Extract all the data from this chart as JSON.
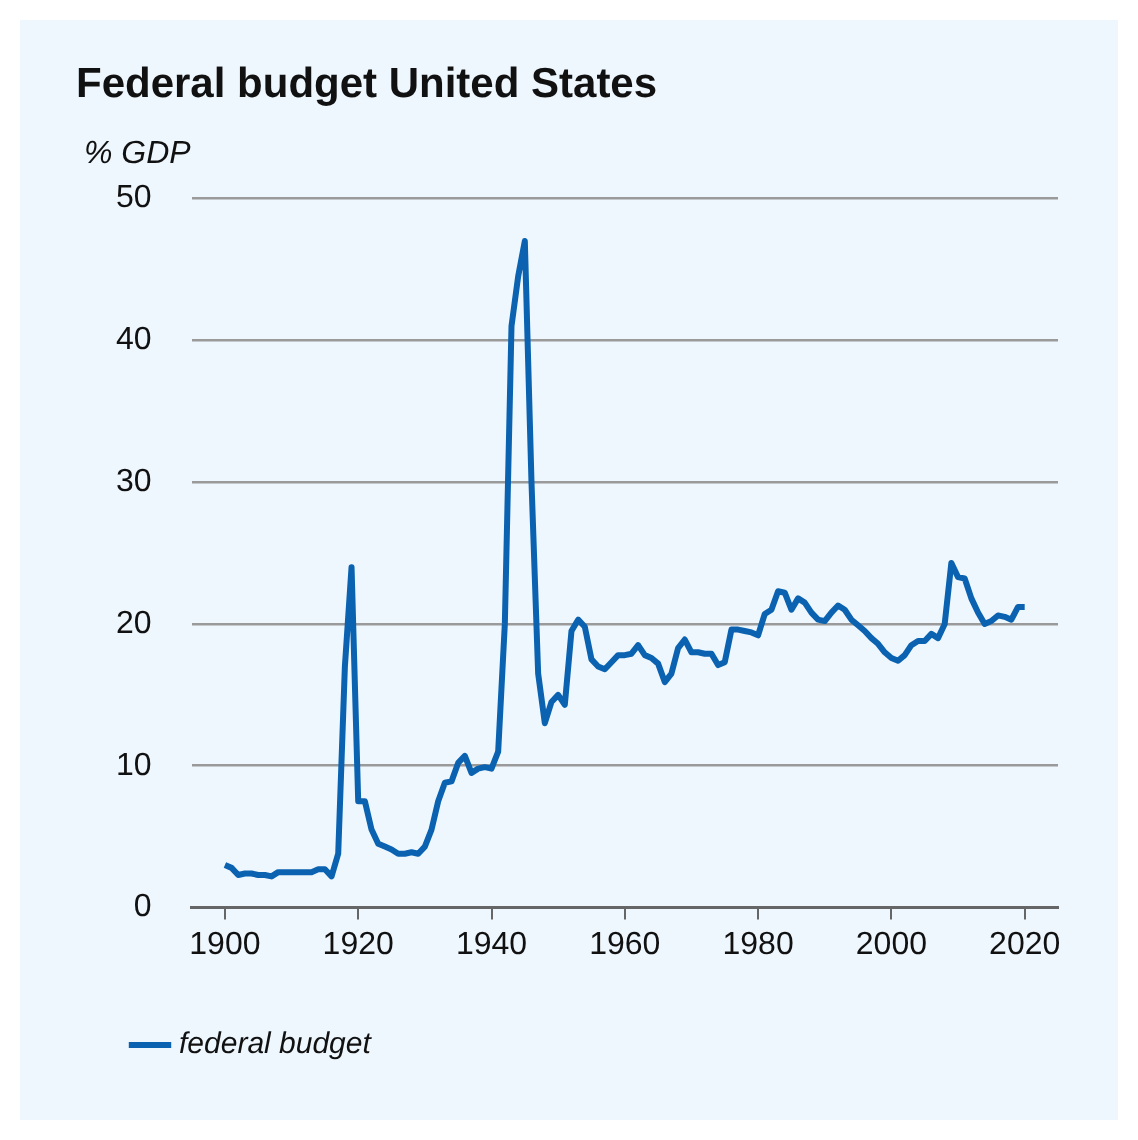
{
  "chart_data": {
    "type": "line",
    "title": "Federal budget United States",
    "ylabel": "% GDP",
    "x": [
      1900,
      1901,
      1902,
      1903,
      1904,
      1905,
      1906,
      1907,
      1908,
      1909,
      1910,
      1911,
      1912,
      1913,
      1914,
      1915,
      1916,
      1917,
      1918,
      1919,
      1920,
      1921,
      1922,
      1923,
      1924,
      1925,
      1926,
      1927,
      1928,
      1929,
      1930,
      1931,
      1932,
      1933,
      1934,
      1935,
      1936,
      1937,
      1938,
      1939,
      1940,
      1941,
      1942,
      1943,
      1944,
      1945,
      1946,
      1947,
      1948,
      1949,
      1950,
      1951,
      1952,
      1953,
      1954,
      1955,
      1956,
      1957,
      1958,
      1959,
      1960,
      1961,
      1962,
      1963,
      1964,
      1965,
      1966,
      1967,
      1968,
      1969,
      1970,
      1971,
      1972,
      1973,
      1974,
      1975,
      1976,
      1977,
      1978,
      1979,
      1980,
      1981,
      1982,
      1983,
      1984,
      1985,
      1986,
      1987,
      1988,
      1989,
      1990,
      1991,
      1992,
      1993,
      1994,
      1995,
      1996,
      1997,
      1998,
      1999,
      2000,
      2001,
      2002,
      2003,
      2004,
      2005,
      2006,
      2007,
      2008,
      2009,
      2010,
      2011,
      2012,
      2013,
      2014,
      2015,
      2016,
      2017,
      2018,
      2019,
      2020
    ],
    "series": [
      {
        "name": "federal budget",
        "color": "#0a62b0",
        "values": [
          3.0,
          2.8,
          2.3,
          2.4,
          2.4,
          2.3,
          2.3,
          2.2,
          2.5,
          2.5,
          2.5,
          2.5,
          2.5,
          2.5,
          2.7,
          2.7,
          2.2,
          3.8,
          17,
          24,
          7.5,
          7.5,
          5.5,
          4.5,
          4.3,
          4.1,
          3.8,
          3.8,
          3.9,
          3.8,
          4.3,
          5.5,
          7.5,
          8.8,
          8.9,
          10.2,
          10.7,
          9.5,
          9.8,
          9.9,
          9.8,
          11,
          20,
          41,
          44.5,
          47,
          30,
          16.5,
          13,
          14.5,
          15,
          14.3,
          19.5,
          20.3,
          19.8,
          17.5,
          17,
          16.8,
          17.3,
          17.8,
          17.8,
          17.9,
          18.5,
          17.8,
          17.6,
          17.2,
          15.9,
          16.5,
          18.3,
          18.9,
          18,
          18,
          17.9,
          17.9,
          17.1,
          17.3,
          19.6,
          19.6,
          19.5,
          19.4,
          19.2,
          20.7,
          21,
          22.3,
          22.2,
          21,
          21.8,
          21.5,
          20.8,
          20.3,
          20.2,
          20.8,
          21.3,
          21,
          20.3,
          19.9,
          19.5,
          19,
          18.6,
          18,
          17.6,
          17.4,
          17.8,
          18.5,
          18.8,
          18.8,
          19.3,
          19,
          20,
          24.3,
          23.3,
          23.2,
          21.8,
          20.8,
          20,
          20.2,
          20.6,
          20.5,
          20.3,
          21.2,
          21.2
        ]
      }
    ],
    "xlim": [
      1895,
      2025
    ],
    "xticks": [
      1900,
      1920,
      1940,
      1960,
      1980,
      2000,
      2020
    ],
    "ylim": [
      0,
      50
    ],
    "yticks": [
      0,
      10,
      20,
      30,
      40,
      50
    ],
    "grid": "y",
    "legend": "bottom left"
  }
}
